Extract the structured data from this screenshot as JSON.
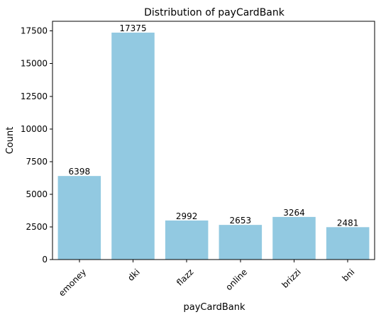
{
  "chart_data": {
    "type": "bar",
    "title": "Distribution of payCardBank",
    "xlabel": "payCardBank",
    "ylabel": "Count",
    "categories": [
      "emoney",
      "dki",
      "flazz",
      "online",
      "brizzi",
      "bni"
    ],
    "values": [
      6398,
      17375,
      2992,
      2653,
      3264,
      2481
    ],
    "data_labels": [
      "6398",
      "17375",
      "2992",
      "2653",
      "3264",
      "2481"
    ],
    "yticks": [
      0,
      2500,
      5000,
      7500,
      10000,
      12500,
      15000,
      17500
    ],
    "ytick_labels": [
      "0",
      "2500",
      "5000",
      "7500",
      "10000",
      "12500",
      "15000",
      "17500"
    ],
    "ylim": [
      0,
      18243.75
    ],
    "bar_color": "#92c9e1",
    "grid": false,
    "legend": "none",
    "xtick_rotation_deg": 45
  }
}
